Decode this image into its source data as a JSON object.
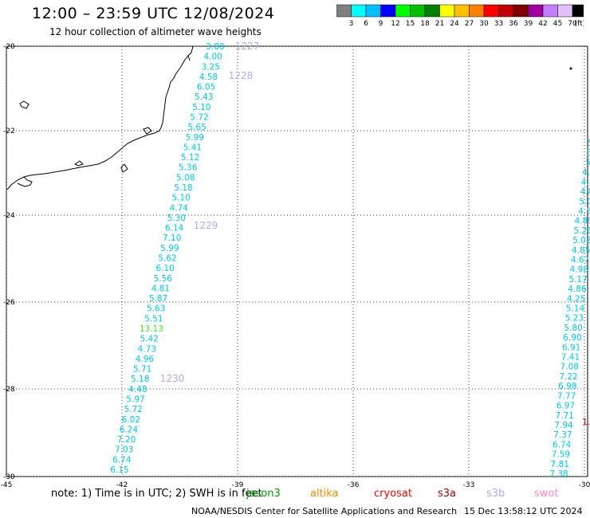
{
  "header": {
    "title": "12:00 – 23:59 UTC 12/08/2024",
    "subtitle": "12 hour collection of altimeter wave heights"
  },
  "colorbar": {
    "colors": [
      "#808080",
      "#00ffff",
      "#00c0ff",
      "#0000ff",
      "#00ff00",
      "#00c000",
      "#008000",
      "#ffff00",
      "#ffc000",
      "#ff8000",
      "#ff0000",
      "#c00000",
      "#800000",
      "#a000a0",
      "#c080ff",
      "#e0c0ff",
      "#000000"
    ],
    "labels": [
      "3",
      "6",
      "9",
      "12",
      "15",
      "18",
      "21",
      "24",
      "27",
      "30",
      "33",
      "36",
      "39",
      "42",
      "45",
      "70",
      "(ft)"
    ]
  },
  "axes": {
    "lon_labels": [
      "-45",
      "-42",
      "-39",
      "-36",
      "-33",
      "-30"
    ],
    "lat_labels": [
      "-20",
      "-22",
      "-24",
      "-26",
      "-28",
      "-30"
    ]
  },
  "map_data": {
    "track_color": "#00c8e6",
    "time_label_color": "#b8a8f0",
    "highlight_color": "#55dd33",
    "left_track": [
      {
        "v": "3.80"
      },
      {
        "v": "4.00"
      },
      {
        "v": "3.25"
      },
      {
        "v": "4.58"
      },
      {
        "v": "6.05"
      },
      {
        "v": "5.43"
      },
      {
        "v": "5.10"
      },
      {
        "v": "5.72"
      },
      {
        "v": "5.65"
      },
      {
        "v": "5.99"
      },
      {
        "v": "5.41"
      },
      {
        "v": "5.12"
      },
      {
        "v": "5.36"
      },
      {
        "v": "5.08"
      },
      {
        "v": "5.18"
      },
      {
        "v": "5.10"
      },
      {
        "v": "4.74"
      },
      {
        "v": "5.30"
      },
      {
        "v": "6.14"
      },
      {
        "v": "7.10"
      },
      {
        "v": "5.99"
      },
      {
        "v": "5.62"
      },
      {
        "v": "6.10"
      },
      {
        "v": "5.56"
      },
      {
        "v": "4.81"
      },
      {
        "v": "5.87"
      },
      {
        "v": "5.63"
      },
      {
        "v": "5.51"
      },
      {
        "v": "13.13"
      },
      {
        "v": "5.42"
      },
      {
        "v": "4.73"
      },
      {
        "v": "4.96"
      },
      {
        "v": "5.71"
      },
      {
        "v": "5.18"
      },
      {
        "v": "4.48"
      },
      {
        "v": "5.97"
      },
      {
        "v": "5.72"
      },
      {
        "v": "6.02"
      },
      {
        "v": "6.24"
      },
      {
        "v": "7.20"
      },
      {
        "v": "7.03"
      },
      {
        "v": "6.74"
      },
      {
        "v": "6.15"
      }
    ],
    "left_times": [
      "1227",
      "1228",
      "1229",
      "1230"
    ],
    "right_track": [
      {
        "v": "5"
      },
      {
        "v": "4"
      },
      {
        "v": "4"
      },
      {
        "v": "5"
      },
      {
        "v": "5"
      },
      {
        "v": "5."
      },
      {
        "v": "5."
      },
      {
        "v": "5."
      },
      {
        "v": "4.8"
      },
      {
        "v": "4.8"
      },
      {
        "v": "4.8"
      },
      {
        "v": "5.0"
      },
      {
        "v": "4.5"
      },
      {
        "v": "4.89"
      },
      {
        "v": "5.26"
      },
      {
        "v": "5.02"
      },
      {
        "v": "4.85"
      },
      {
        "v": "4.67"
      },
      {
        "v": "4.98"
      },
      {
        "v": "5.17"
      },
      {
        "v": "4.86"
      },
      {
        "v": "4.25"
      },
      {
        "v": "5.14"
      },
      {
        "v": "5.23"
      },
      {
        "v": "5.80"
      },
      {
        "v": "6.90"
      },
      {
        "v": "6.91"
      },
      {
        "v": "7.41"
      },
      {
        "v": "7.08"
      },
      {
        "v": "7.22"
      },
      {
        "v": "6.98"
      },
      {
        "v": "7.77"
      },
      {
        "v": "6.97"
      },
      {
        "v": "7.71"
      },
      {
        "v": "7.94"
      },
      {
        "v": "7.37"
      },
      {
        "v": "6.74"
      },
      {
        "v": "7.59"
      },
      {
        "v": "7.81"
      },
      {
        "v": "7.38"
      }
    ],
    "right_edge_red": "1."
  },
  "note": {
    "text": "note:  1) Time is in UTC; 2) SWH is in feet",
    "satellites": [
      {
        "name": "jason3",
        "color": "#009900"
      },
      {
        "name": "altika",
        "color": "#ff8c00"
      },
      {
        "name": "cryosat",
        "color": "#ff0000"
      },
      {
        "name": "s3a",
        "color": "#990000"
      },
      {
        "name": "s3b",
        "color": "#b8a8f0"
      },
      {
        "name": "swot",
        "color": "#ff88cc"
      }
    ]
  },
  "footer": {
    "credit": "NOAA/NESDIS Center for Satellite Applications and Research",
    "timestamp": "15 Dec 13:58:12 UTC 2024"
  }
}
